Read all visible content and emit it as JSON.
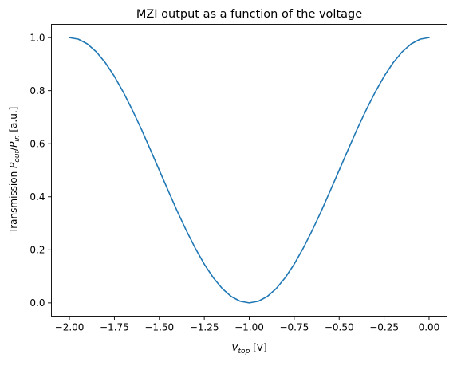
{
  "chart_data": {
    "type": "line",
    "title": "MZI output as a function of the voltage",
    "xlabel": {
      "main": "V",
      "sub": "top",
      "suffix": " [V]"
    },
    "ylabel": {
      "prefix": "Transmission ",
      "num_main": "P",
      "num_sub": "out",
      "slash": "/",
      "den_main": "P",
      "den_sub": "in",
      "suffix": " [a.u.]"
    },
    "xlim": [
      -2.1,
      0.1
    ],
    "ylim": [
      -0.05,
      1.05
    ],
    "x_ticks": [
      -2.0,
      -1.75,
      -1.5,
      -1.25,
      -1.0,
      -0.75,
      -0.5,
      -0.25,
      0.0
    ],
    "x_tick_labels": [
      "−2.00",
      "−1.75",
      "−1.50",
      "−1.25",
      "−1.00",
      "−0.75",
      "−0.50",
      "−0.25",
      "0.00"
    ],
    "y_ticks": [
      0.0,
      0.2,
      0.4,
      0.6,
      0.8,
      1.0
    ],
    "y_tick_labels": [
      "0.0",
      "0.2",
      "0.4",
      "0.6",
      "0.8",
      "1.0"
    ],
    "grid": false,
    "legend": "none",
    "series": [
      {
        "color": "#1f77b4",
        "x": [
          -2.0,
          -1.95,
          -1.9,
          -1.85,
          -1.8,
          -1.75,
          -1.7,
          -1.65,
          -1.6,
          -1.55,
          -1.5,
          -1.45,
          -1.4,
          -1.35,
          -1.3,
          -1.25,
          -1.2,
          -1.15,
          -1.1,
          -1.05,
          -1.0,
          -0.95,
          -0.9,
          -0.85,
          -0.8,
          -0.75,
          -0.7,
          -0.65,
          -0.6,
          -0.55,
          -0.5,
          -0.45,
          -0.4,
          -0.35,
          -0.3,
          -0.25,
          -0.2,
          -0.15,
          -0.1,
          -0.05,
          0.0
        ],
        "y": [
          1.0,
          0.994,
          0.976,
          0.946,
          0.905,
          0.854,
          0.794,
          0.727,
          0.655,
          0.578,
          0.5,
          0.422,
          0.345,
          0.273,
          0.206,
          0.146,
          0.095,
          0.054,
          0.024,
          0.006,
          0.0,
          0.006,
          0.024,
          0.054,
          0.095,
          0.146,
          0.206,
          0.273,
          0.345,
          0.422,
          0.5,
          0.578,
          0.655,
          0.727,
          0.794,
          0.854,
          0.905,
          0.946,
          0.976,
          0.994,
          1.0
        ]
      }
    ]
  }
}
